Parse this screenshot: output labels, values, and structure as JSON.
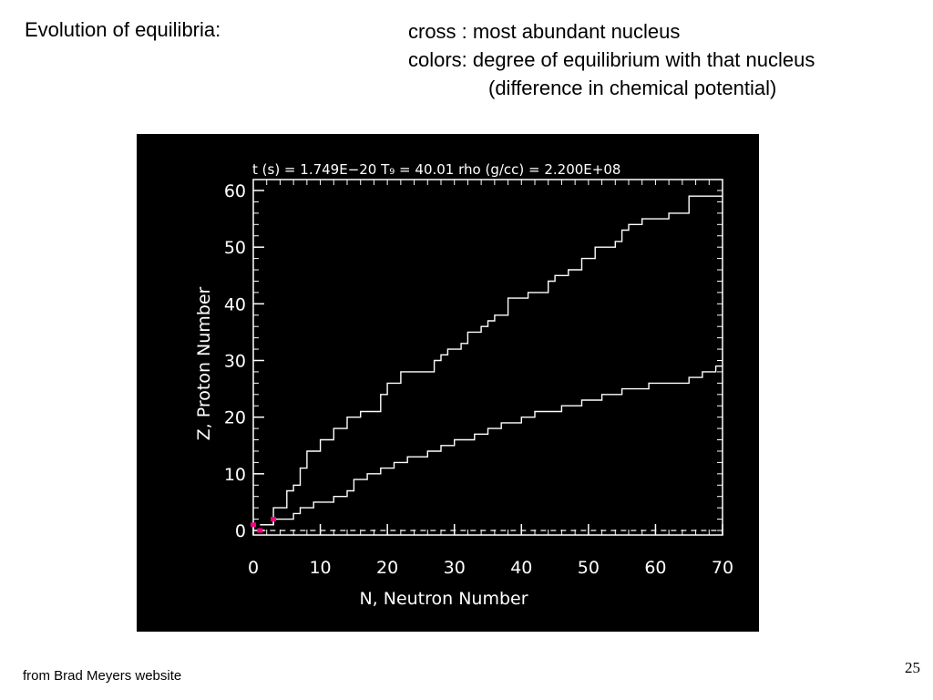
{
  "slide": {
    "title": "Evolution of equilibria:",
    "notes": [
      {
        "term": "cross : ",
        "definition": "most abundant nucleus"
      },
      {
        "term": "colors: ",
        "definition": "degree of equilibrium with that nucleus"
      },
      {
        "term": "",
        "definition": "(difference in chemical potential)"
      }
    ],
    "footer": "from Brad Meyers website",
    "page_number": "25"
  },
  "chart_data": {
    "type": "line",
    "title": "t (s) = 1.749E−20    T₉ = 40.01  rho (g/cc) = 2.200E+08",
    "xlabel": "N, Neutron Number",
    "ylabel": "Z, Proton Number",
    "xlim": [
      0,
      70
    ],
    "ylim": [
      0,
      60
    ],
    "x_ticks": [
      0,
      10,
      20,
      30,
      40,
      50,
      60,
      70
    ],
    "y_ticks": [
      0,
      10,
      20,
      30,
      40,
      50,
      60
    ],
    "background": "#000000",
    "foreground": "#ffffff",
    "highlight_color": "#ff0080",
    "grid": false,
    "series": [
      {
        "role": "proton-rich boundary (upper staircase)",
        "points": [
          [
            1,
            1
          ],
          [
            3,
            1
          ],
          [
            3,
            4
          ],
          [
            5,
            4
          ],
          [
            5,
            7
          ],
          [
            6,
            7
          ],
          [
            6,
            8
          ],
          [
            7,
            8
          ],
          [
            7,
            11
          ],
          [
            8,
            11
          ],
          [
            8,
            14
          ],
          [
            10,
            14
          ],
          [
            10,
            16
          ],
          [
            12,
            16
          ],
          [
            12,
            18
          ],
          [
            14,
            18
          ],
          [
            14,
            20
          ],
          [
            16,
            20
          ],
          [
            16,
            21
          ],
          [
            19,
            21
          ],
          [
            19,
            24
          ],
          [
            20,
            24
          ],
          [
            20,
            26
          ],
          [
            22,
            26
          ],
          [
            22,
            28
          ],
          [
            27,
            28
          ],
          [
            27,
            30
          ],
          [
            28,
            30
          ],
          [
            28,
            31
          ],
          [
            29,
            31
          ],
          [
            29,
            32
          ],
          [
            31,
            32
          ],
          [
            31,
            33
          ],
          [
            32,
            33
          ],
          [
            32,
            35
          ],
          [
            34,
            35
          ],
          [
            34,
            36
          ],
          [
            35,
            36
          ],
          [
            35,
            37
          ],
          [
            36,
            37
          ],
          [
            36,
            38
          ],
          [
            38,
            38
          ],
          [
            38,
            41
          ],
          [
            41,
            41
          ],
          [
            41,
            42
          ],
          [
            44,
            42
          ],
          [
            44,
            44
          ],
          [
            45,
            44
          ],
          [
            45,
            45
          ],
          [
            47,
            45
          ],
          [
            47,
            46
          ],
          [
            49,
            46
          ],
          [
            49,
            48
          ],
          [
            51,
            48
          ],
          [
            51,
            50
          ],
          [
            54,
            50
          ],
          [
            54,
            51
          ],
          [
            55,
            51
          ],
          [
            55,
            53
          ],
          [
            56,
            53
          ],
          [
            56,
            54
          ],
          [
            58,
            54
          ],
          [
            58,
            55
          ],
          [
            62,
            55
          ],
          [
            62,
            56
          ],
          [
            65,
            56
          ],
          [
            65,
            59
          ],
          [
            70,
            59
          ]
        ]
      },
      {
        "role": "neutron-rich boundary (lower staircase)",
        "points": [
          [
            1,
            1
          ],
          [
            3,
            1
          ],
          [
            3,
            2
          ],
          [
            6,
            2
          ],
          [
            6,
            3
          ],
          [
            7,
            3
          ],
          [
            7,
            4
          ],
          [
            9,
            4
          ],
          [
            9,
            5
          ],
          [
            12,
            5
          ],
          [
            12,
            6
          ],
          [
            14,
            6
          ],
          [
            14,
            7
          ],
          [
            15,
            7
          ],
          [
            15,
            9
          ],
          [
            17,
            9
          ],
          [
            17,
            10
          ],
          [
            19,
            10
          ],
          [
            19,
            11
          ],
          [
            21,
            11
          ],
          [
            21,
            12
          ],
          [
            23,
            12
          ],
          [
            23,
            13
          ],
          [
            26,
            13
          ],
          [
            26,
            14
          ],
          [
            28,
            14
          ],
          [
            28,
            15
          ],
          [
            30,
            15
          ],
          [
            30,
            16
          ],
          [
            33,
            16
          ],
          [
            33,
            17
          ],
          [
            35,
            17
          ],
          [
            35,
            18
          ],
          [
            37,
            18
          ],
          [
            37,
            19
          ],
          [
            40,
            19
          ],
          [
            40,
            20
          ],
          [
            42,
            20
          ],
          [
            42,
            21
          ],
          [
            46,
            21
          ],
          [
            46,
            22
          ],
          [
            49,
            22
          ],
          [
            49,
            23
          ],
          [
            52,
            23
          ],
          [
            52,
            24
          ],
          [
            55,
            24
          ],
          [
            55,
            25
          ],
          [
            59,
            25
          ],
          [
            59,
            26
          ],
          [
            65,
            26
          ],
          [
            65,
            27
          ],
          [
            67,
            27
          ],
          [
            67,
            28
          ],
          [
            69,
            28
          ],
          [
            69,
            29
          ],
          [
            70,
            29
          ]
        ]
      }
    ],
    "highlighted_cells": [
      [
        0,
        1
      ],
      [
        1,
        0
      ],
      [
        3,
        2
      ]
    ]
  }
}
